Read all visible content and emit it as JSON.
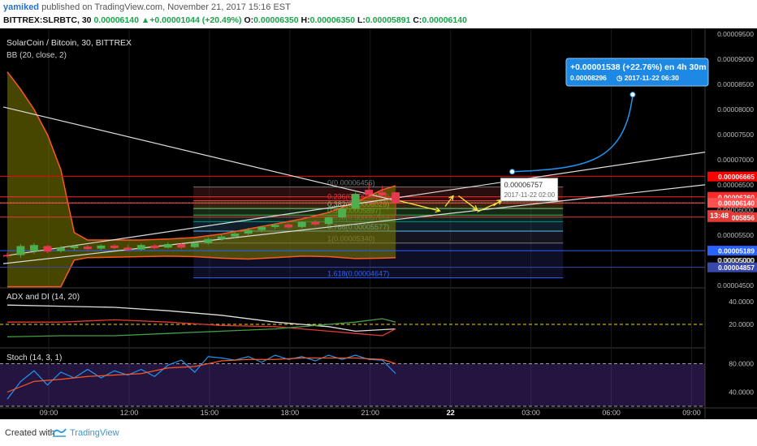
{
  "header": {
    "user": "yamiked",
    "published_text": "published on TradingView.com, November 21, 2017 15:16 EST",
    "symbol": "BITTREX:SLRBTC, 30",
    "last": "0.00006140",
    "change": "+0.00001044 (+20.49%)",
    "o_label": "O:",
    "o": "0.00006350",
    "h_label": "H:",
    "h": "0.00006350",
    "l_label": "L:",
    "l": "0.00005891",
    "c_label": "C:",
    "c": "0.00006140"
  },
  "footer": {
    "created_with": "Created with",
    "brand": "TradingView"
  },
  "chart_data": [
    {
      "type": "candlestick",
      "title": "SolarCoin / Bitcoin, 30, BITTREX",
      "indicator_label": "BB (20, close, 2)",
      "ylim": [
        4.48e-05,
        9.55e-05
      ],
      "y_ticks": [
        "0.00009500",
        "0.00009000",
        "0.00008500",
        "0.00008000",
        "0.00007500",
        "0.00007000",
        "0.00006500",
        "0.00006000",
        "0.00005500",
        "0.00005000",
        "0.00004500"
      ],
      "x_ticks": [
        "09:00",
        "12:00",
        "15:00",
        "18:00",
        "21:00",
        "22",
        "03:00",
        "06:00",
        "09:00"
      ],
      "x_tick_hours": [
        9,
        12,
        15,
        18,
        21,
        24,
        27,
        30,
        33
      ],
      "xlim_hours": [
        7.3,
        33.5
      ],
      "candles": [
        {
          "t": 7.45,
          "o": 5.1e-05,
          "h": 5.15e-05,
          "c": 5.08e-05,
          "l": 5.05e-05
        },
        {
          "t": 7.95,
          "o": 5.1e-05,
          "h": 5.32e-05,
          "c": 5.28e-05,
          "l": 5.05e-05
        },
        {
          "t": 8.45,
          "o": 5.18e-05,
          "h": 5.34e-05,
          "c": 5.3e-05,
          "l": 5.12e-05
        },
        {
          "t": 8.95,
          "o": 5.28e-05,
          "h": 5.3e-05,
          "c": 5.17e-05,
          "l": 5.14e-05
        },
        {
          "t": 9.45,
          "o": 5.18e-05,
          "h": 5.28e-05,
          "c": 5.25e-05,
          "l": 5.15e-05
        },
        {
          "t": 9.95,
          "o": 5.24e-05,
          "h": 5.3e-05,
          "c": 5.28e-05,
          "l": 5.2e-05
        },
        {
          "t": 10.45,
          "o": 5.27e-05,
          "h": 5.3e-05,
          "c": 5.22e-05,
          "l": 5.2e-05
        },
        {
          "t": 10.95,
          "o": 5.23e-05,
          "h": 5.31e-05,
          "c": 5.29e-05,
          "l": 5.2e-05
        },
        {
          "t": 11.45,
          "o": 5.29e-05,
          "h": 5.32e-05,
          "c": 5.24e-05,
          "l": 5.21e-05
        },
        {
          "t": 11.95,
          "o": 5.25e-05,
          "h": 5.3e-05,
          "c": 5.2e-05,
          "l": 5.18e-05
        },
        {
          "t": 12.45,
          "o": 5.21e-05,
          "h": 5.33e-05,
          "c": 5.3e-05,
          "l": 5.19e-05
        },
        {
          "t": 12.95,
          "o": 5.29e-05,
          "h": 5.32e-05,
          "c": 5.24e-05,
          "l": 5.22e-05
        },
        {
          "t": 13.45,
          "o": 5.25e-05,
          "h": 5.35e-05,
          "c": 5.32e-05,
          "l": 5.23e-05
        },
        {
          "t": 13.95,
          "o": 5.32e-05,
          "h": 5.34e-05,
          "c": 5.25e-05,
          "l": 5.22e-05
        },
        {
          "t": 14.45,
          "o": 5.26e-05,
          "h": 5.36e-05,
          "c": 5.34e-05,
          "l": 5.24e-05
        },
        {
          "t": 14.95,
          "o": 5.34e-05,
          "h": 5.45e-05,
          "c": 5.42e-05,
          "l": 5.31e-05
        },
        {
          "t": 15.45,
          "o": 5.42e-05,
          "h": 5.5e-05,
          "c": 5.47e-05,
          "l": 5.39e-05
        },
        {
          "t": 15.95,
          "o": 5.47e-05,
          "h": 5.56e-05,
          "c": 5.53e-05,
          "l": 5.43e-05
        },
        {
          "t": 16.45,
          "o": 5.53e-05,
          "h": 5.64e-05,
          "c": 5.6e-05,
          "l": 5.5e-05
        },
        {
          "t": 16.95,
          "o": 5.6e-05,
          "h": 5.68e-05,
          "c": 5.66e-05,
          "l": 5.56e-05
        },
        {
          "t": 17.45,
          "o": 5.66e-05,
          "h": 5.72e-05,
          "c": 5.7e-05,
          "l": 5.62e-05
        },
        {
          "t": 17.95,
          "o": 5.71e-05,
          "h": 5.74e-05,
          "c": 5.65e-05,
          "l": 5.62e-05
        },
        {
          "t": 18.45,
          "o": 5.66e-05,
          "h": 5.78e-05,
          "c": 5.76e-05,
          "l": 5.63e-05
        },
        {
          "t": 18.95,
          "o": 5.76e-05,
          "h": 5.8e-05,
          "c": 5.71e-05,
          "l": 5.68e-05
        },
        {
          "t": 19.45,
          "o": 5.72e-05,
          "h": 5.87e-05,
          "c": 5.85e-05,
          "l": 5.7e-05
        },
        {
          "t": 19.95,
          "o": 5.85e-05,
          "h": 6.05e-05,
          "c": 6.02e-05,
          "l": 5.82e-05
        },
        {
          "t": 20.45,
          "o": 6.03e-05,
          "h": 6.35e-05,
          "c": 6.32e-05,
          "l": 6e-05
        },
        {
          "t": 20.95,
          "o": 6.4e-05,
          "h": 6.52e-05,
          "c": 6.3e-05,
          "l": 6.25e-05
        },
        {
          "t": 21.45,
          "o": 6.35e-05,
          "h": 6.48e-05,
          "c": 6.29e-05,
          "l": 6.26e-05
        },
        {
          "t": 21.95,
          "o": 6.35e-05,
          "h": 6.35e-05,
          "c": 6.14e-05,
          "l": 5.89e-05
        }
      ],
      "bollinger": {
        "upper": [
          [
            7.45,
            8.75e-05
          ],
          [
            7.95,
            8.4e-05
          ],
          [
            8.45,
            8e-05
          ],
          [
            8.95,
            7.5e-05
          ],
          [
            9.45,
            6.8e-05
          ],
          [
            9.95,
            5.55e-05
          ],
          [
            10.45,
            5.4e-05
          ],
          [
            11.45,
            5.4e-05
          ],
          [
            12.45,
            5.4e-05
          ],
          [
            13.45,
            5.42e-05
          ],
          [
            14.45,
            5.45e-05
          ],
          [
            15.45,
            5.52e-05
          ],
          [
            16.45,
            5.62e-05
          ],
          [
            17.45,
            5.72e-05
          ],
          [
            18.45,
            5.82e-05
          ],
          [
            19.45,
            5.95e-05
          ],
          [
            20.45,
            6.15e-05
          ],
          [
            21.45,
            6.4e-05
          ],
          [
            21.95,
            6.48e-05
          ]
        ],
        "lower": [
          [
            7.45,
            4.47e-05
          ],
          [
            9.45,
            4.47e-05
          ],
          [
            9.95,
            5e-05
          ],
          [
            10.45,
            5.05e-05
          ],
          [
            11.45,
            5.06e-05
          ],
          [
            12.45,
            5.07e-05
          ],
          [
            13.45,
            5.08e-05
          ],
          [
            14.45,
            5.07e-05
          ],
          [
            15.45,
            5.04e-05
          ],
          [
            16.45,
            5.02e-05
          ],
          [
            17.45,
            5.05e-05
          ],
          [
            18.45,
            5.08e-05
          ],
          [
            19.45,
            5.07e-05
          ],
          [
            20.45,
            5.03e-05
          ],
          [
            21.45,
            5.04e-05
          ],
          [
            21.95,
            5.05e-05
          ]
        ]
      },
      "fibonacci": [
        {
          "label": "0(0.00006456)",
          "level": 6.456e-05,
          "color": "#787878"
        },
        {
          "label": "0.236(0.00006183)",
          "level": 6.183e-05,
          "color": "#f23645"
        },
        {
          "label": "0.382(0.00006029)",
          "level": 6.029e-05,
          "color": "#81c784"
        },
        {
          "label": "0.5(0.00005897)",
          "level": 5.897e-05,
          "color": "#4caf50"
        },
        {
          "label": "0.618(0.00005765)",
          "level": 5.765e-05,
          "color": "#009688"
        },
        {
          "label": "0.786(0.00005577)",
          "level": 5.577e-05,
          "color": "#64b5f6"
        },
        {
          "label": "1(0.00005340)",
          "level": 5.34e-05,
          "color": "#787878"
        },
        {
          "label": "1.618(0.00004647)",
          "level": 4.647e-05,
          "color": "#2962ff"
        }
      ],
      "horizontal_lines": [
        {
          "level": 6.665e-05,
          "label": "0.00006665",
          "color": "#ff0000"
        },
        {
          "level": 6.26e-05,
          "label": "0.00006260",
          "color": "#ff2a2a"
        },
        {
          "level": 6.14e-05,
          "label": "0.00006140",
          "color": "#ff5050"
        },
        {
          "level": 5.856e-05,
          "label": "0.00005856",
          "color": "#e53935"
        },
        {
          "level": 5.189e-05,
          "label": "0.00005189",
          "color": "#2962ff"
        },
        {
          "level": 4.857e-05,
          "label": "0.00004857",
          "color": "#3949ab"
        }
      ],
      "countdown_label": "13:48",
      "plain_tick_label": "0.00005000",
      "projection": {
        "text": "+0.00001538 (+22.76%) en 4h 30m",
        "subtext_price": "0.00008296",
        "subtext_time": "2017-11-22  06:30",
        "start": [
          26.3,
          6.76e-05
        ],
        "end": [
          30.8,
          8.296e-05
        ]
      },
      "marker_label": {
        "price": "0.00006757",
        "time": "2017-11-22  02:00"
      }
    },
    {
      "type": "line",
      "title": "ADX and DI (14, 20)",
      "ylim": [
        0,
        50
      ],
      "y_ticks": [
        "40.0000",
        "20.0000"
      ],
      "threshold": 20,
      "series": [
        {
          "color": "#e0e0e0",
          "points": [
            [
              7.45,
              37
            ],
            [
              9.45,
              36
            ],
            [
              11.45,
              35
            ],
            [
              13.45,
              32
            ],
            [
              15.45,
              28
            ],
            [
              17.45,
              22
            ],
            [
              19.45,
              18
            ],
            [
              20.45,
              14
            ],
            [
              21.95,
              16
            ]
          ]
        },
        {
          "color": "#e53935",
          "points": [
            [
              7.45,
              22
            ],
            [
              9.45,
              22
            ],
            [
              11.45,
              24
            ],
            [
              13.45,
              22
            ],
            [
              15.45,
              19
            ],
            [
              17.45,
              18
            ],
            [
              19.45,
              14
            ],
            [
              20.45,
              12
            ],
            [
              21.45,
              10
            ],
            [
              21.95,
              16
            ]
          ]
        },
        {
          "color": "#43a047",
          "points": [
            [
              7.45,
              9
            ],
            [
              9.45,
              10
            ],
            [
              11.45,
              10
            ],
            [
              13.45,
              12
            ],
            [
              15.45,
              14
            ],
            [
              17.45,
              16
            ],
            [
              19.45,
              20
            ],
            [
              20.45,
              22
            ],
            [
              21.45,
              25
            ],
            [
              21.95,
              22
            ]
          ]
        }
      ]
    },
    {
      "type": "line",
      "title": "Stoch (14, 3, 1)",
      "ylim": [
        20,
        100
      ],
      "y_ticks": [
        "80.0000",
        "40.0000"
      ],
      "band": [
        20,
        80
      ],
      "series": [
        {
          "color": "#2196f3",
          "points": [
            [
              7.45,
              30
            ],
            [
              7.95,
              55
            ],
            [
              8.45,
              70
            ],
            [
              8.95,
              50
            ],
            [
              9.45,
              68
            ],
            [
              9.95,
              60
            ],
            [
              10.45,
              72
            ],
            [
              10.95,
              60
            ],
            [
              11.45,
              70
            ],
            [
              11.95,
              64
            ],
            [
              12.45,
              72
            ],
            [
              12.95,
              62
            ],
            [
              13.45,
              78
            ],
            [
              13.95,
              85
            ],
            [
              14.45,
              68
            ],
            [
              14.95,
              90
            ],
            [
              15.45,
              88
            ],
            [
              15.95,
              85
            ],
            [
              16.45,
              90
            ],
            [
              16.95,
              82
            ],
            [
              17.45,
              92
            ],
            [
              17.95,
              86
            ],
            [
              18.45,
              90
            ],
            [
              18.95,
              84
            ],
            [
              19.45,
              92
            ],
            [
              19.95,
              86
            ],
            [
              20.45,
              92
            ],
            [
              20.95,
              86
            ],
            [
              21.45,
              85
            ],
            [
              21.95,
              66
            ]
          ]
        },
        {
          "color": "#ff5722",
          "points": [
            [
              7.45,
              40
            ],
            [
              8.45,
              55
            ],
            [
              9.45,
              58
            ],
            [
              10.45,
              62
            ],
            [
              11.45,
              64
            ],
            [
              12.45,
              66
            ],
            [
              13.45,
              74
            ],
            [
              14.45,
              76
            ],
            [
              15.45,
              84
            ],
            [
              16.45,
              86
            ],
            [
              17.45,
              86
            ],
            [
              18.45,
              88
            ],
            [
              19.45,
              88
            ],
            [
              20.45,
              88
            ],
            [
              21.45,
              86
            ],
            [
              21.95,
              80
            ]
          ]
        }
      ]
    }
  ]
}
